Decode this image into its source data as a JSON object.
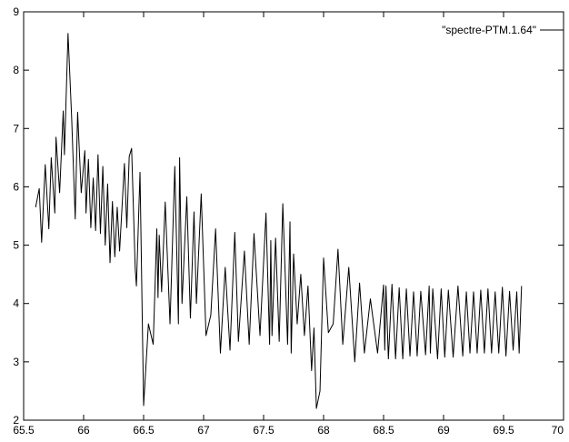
{
  "chart_data": {
    "type": "line",
    "title": "",
    "xlabel": "",
    "ylabel": "",
    "xlim": [
      65.5,
      70
    ],
    "ylim": [
      2,
      9
    ],
    "xticks": [
      65.5,
      66,
      66.5,
      67,
      67.5,
      68,
      68.5,
      69,
      69.5,
      70
    ],
    "yticks": [
      2,
      3,
      4,
      5,
      6,
      7,
      8,
      9
    ],
    "xtick_labels": [
      "65.5",
      "66",
      "66.5",
      "67",
      "67.5",
      "68",
      "68.5",
      "69",
      "69.5",
      "70"
    ],
    "ytick_labels": [
      "2",
      "3",
      "4",
      "5",
      "6",
      "7",
      "8",
      "9"
    ],
    "grid": false,
    "legend_position": "top-right",
    "series": [
      {
        "name": "\"spectre-PTM.1.64\"",
        "color": "#000000",
        "x": [
          65.6,
          65.63,
          65.65,
          65.68,
          65.71,
          65.73,
          65.76,
          65.77,
          65.8,
          65.83,
          65.84,
          65.87,
          65.9,
          65.93,
          65.95,
          65.98,
          66.01,
          66.02,
          66.04,
          66.06,
          66.08,
          66.1,
          66.12,
          66.14,
          66.16,
          66.18,
          66.2,
          66.22,
          66.24,
          66.26,
          66.28,
          66.3,
          66.34,
          66.36,
          66.38,
          66.4,
          66.43,
          66.44,
          66.47,
          66.5,
          66.54,
          66.58,
          66.61,
          66.62,
          66.63,
          66.65,
          66.68,
          66.72,
          66.76,
          66.79,
          66.8,
          66.82,
          66.86,
          66.89,
          66.92,
          66.94,
          66.98,
          67.02,
          67.06,
          67.1,
          67.14,
          67.18,
          67.22,
          67.26,
          67.29,
          67.34,
          67.38,
          67.42,
          67.47,
          67.52,
          67.55,
          67.56,
          67.57,
          67.6,
          67.63,
          67.66,
          67.7,
          67.72,
          67.73,
          67.75,
          67.78,
          67.81,
          67.84,
          67.87,
          67.9,
          67.92,
          67.94,
          67.97,
          68.0,
          68.04,
          68.08,
          68.12,
          68.16,
          68.21,
          68.26,
          68.3,
          68.34,
          68.39,
          68.45,
          68.5,
          68.51,
          68.52,
          68.54,
          68.57,
          68.6,
          68.63,
          68.66,
          68.69,
          68.72,
          68.75,
          68.78,
          68.81,
          68.85,
          68.88,
          68.89,
          68.91,
          68.95,
          68.98,
          69.01,
          69.04,
          69.08,
          69.12,
          69.16,
          69.19,
          69.22,
          69.25,
          69.28,
          69.31,
          69.34,
          69.37,
          69.4,
          69.43,
          69.46,
          69.49,
          69.52,
          69.55,
          69.58,
          69.61,
          69.63,
          69.65
        ],
        "y": [
          5.65,
          5.97,
          5.05,
          6.38,
          5.28,
          6.5,
          5.55,
          6.85,
          5.9,
          7.3,
          6.55,
          8.63,
          7.2,
          5.45,
          7.28,
          5.9,
          6.62,
          5.55,
          6.47,
          5.3,
          6.15,
          5.25,
          6.55,
          5.2,
          6.35,
          5.0,
          6.05,
          4.7,
          5.75,
          4.8,
          5.65,
          4.9,
          6.4,
          5.3,
          6.52,
          6.66,
          4.6,
          4.3,
          6.25,
          2.25,
          3.65,
          3.3,
          5.28,
          4.1,
          5.17,
          4.2,
          5.74,
          3.65,
          6.35,
          3.65,
          6.5,
          4.0,
          5.83,
          3.75,
          5.57,
          4.0,
          5.88,
          3.45,
          3.8,
          5.28,
          3.15,
          4.62,
          3.2,
          5.22,
          3.35,
          4.9,
          3.3,
          5.2,
          3.45,
          5.55,
          3.3,
          5.08,
          3.45,
          5.12,
          3.35,
          5.71,
          3.3,
          5.4,
          3.15,
          4.85,
          3.65,
          4.5,
          3.45,
          4.3,
          2.85,
          3.58,
          2.2,
          2.5,
          4.78,
          3.5,
          3.65,
          4.93,
          3.3,
          4.62,
          3.0,
          4.35,
          3.15,
          4.08,
          3.15,
          4.32,
          3.2,
          4.3,
          3.05,
          4.33,
          3.05,
          4.27,
          3.05,
          4.25,
          3.1,
          4.2,
          3.1,
          4.21,
          3.12,
          4.3,
          3.15,
          4.25,
          3.05,
          4.25,
          3.08,
          4.23,
          3.08,
          4.3,
          3.1,
          4.2,
          3.15,
          4.2,
          3.15,
          4.23,
          3.15,
          4.25,
          3.15,
          4.2,
          3.15,
          4.28,
          3.1,
          4.21,
          3.2,
          4.2,
          3.15,
          4.3
        ]
      }
    ]
  }
}
